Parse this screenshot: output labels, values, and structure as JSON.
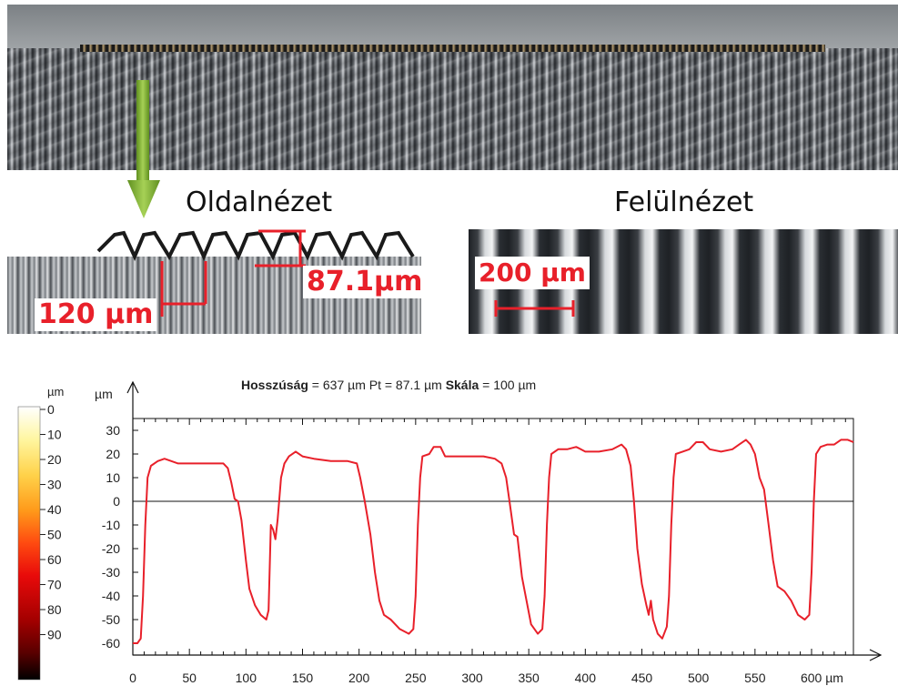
{
  "labels": {
    "side_view": "Oldalnézet",
    "top_view": "Felülnézet",
    "pitch": "120 µm",
    "depth": "87.1µm",
    "scale": "200 µm"
  },
  "header": {
    "length_label": "Hosszúság",
    "length_value": " = 637 µm  Pt = 87.1 µm ",
    "scale_label": "Skála",
    "scale_value": " = 100 µm"
  },
  "colorbar": {
    "unit": "µm",
    "ticks": [
      "0",
      "10",
      "20",
      "30",
      "40",
      "50",
      "60",
      "70",
      "80",
      "90"
    ]
  },
  "colors": {
    "accent_red": "#e8202a",
    "arrow_green": "#7cae2f"
  },
  "chart_data": {
    "type": "line",
    "title": "",
    "xlabel": "µm",
    "ylabel": "µm",
    "xlim": [
      0,
      637
    ],
    "ylim": [
      -65,
      35
    ],
    "x_ticks": [
      0,
      50,
      100,
      150,
      200,
      250,
      300,
      350,
      400,
      450,
      500,
      550,
      600
    ],
    "x_last_tick_label": "600 µm",
    "y_ticks": [
      30,
      20,
      10,
      0,
      -10,
      -20,
      -30,
      -40,
      -50,
      -60
    ],
    "series": [
      {
        "color": "#e8202a",
        "points": [
          [
            0,
            -60
          ],
          [
            4,
            -60
          ],
          [
            7,
            -58
          ],
          [
            9,
            -40
          ],
          [
            11,
            -10
          ],
          [
            13,
            10
          ],
          [
            16,
            15
          ],
          [
            22,
            17
          ],
          [
            28,
            18
          ],
          [
            34,
            17
          ],
          [
            40,
            16
          ],
          [
            60,
            16
          ],
          [
            80,
            16
          ],
          [
            84,
            14
          ],
          [
            87,
            8
          ],
          [
            90,
            1
          ],
          [
            93,
            0
          ],
          [
            96,
            -8
          ],
          [
            100,
            -25
          ],
          [
            103,
            -37
          ],
          [
            108,
            -44
          ],
          [
            113,
            -48
          ],
          [
            118,
            -50
          ],
          [
            120,
            -46
          ],
          [
            122,
            -10
          ],
          [
            124,
            -12
          ],
          [
            126,
            -16
          ],
          [
            128,
            -8
          ],
          [
            131,
            10
          ],
          [
            134,
            16
          ],
          [
            138,
            19
          ],
          [
            144,
            21
          ],
          [
            150,
            19
          ],
          [
            160,
            18
          ],
          [
            175,
            17
          ],
          [
            190,
            17
          ],
          [
            198,
            16
          ],
          [
            201,
            10
          ],
          [
            205,
            0
          ],
          [
            210,
            -14
          ],
          [
            214,
            -30
          ],
          [
            218,
            -42
          ],
          [
            222,
            -48
          ],
          [
            228,
            -50
          ],
          [
            236,
            -54
          ],
          [
            244,
            -56
          ],
          [
            248,
            -54
          ],
          [
            250,
            -40
          ],
          [
            252,
            -10
          ],
          [
            254,
            10
          ],
          [
            256,
            19
          ],
          [
            262,
            20
          ],
          [
            266,
            23
          ],
          [
            272,
            23
          ],
          [
            276,
            19
          ],
          [
            290,
            19
          ],
          [
            310,
            19
          ],
          [
            320,
            18
          ],
          [
            326,
            16
          ],
          [
            330,
            10
          ],
          [
            333,
            0
          ],
          [
            337,
            -14
          ],
          [
            340,
            -15
          ],
          [
            344,
            -32
          ],
          [
            348,
            -42
          ],
          [
            352,
            -52
          ],
          [
            358,
            -56
          ],
          [
            362,
            -54
          ],
          [
            364,
            -40
          ],
          [
            366,
            -10
          ],
          [
            368,
            10
          ],
          [
            370,
            20
          ],
          [
            376,
            22
          ],
          [
            384,
            22
          ],
          [
            392,
            23
          ],
          [
            400,
            21
          ],
          [
            412,
            21
          ],
          [
            424,
            22
          ],
          [
            432,
            24
          ],
          [
            436,
            22
          ],
          [
            440,
            15
          ],
          [
            443,
            0
          ],
          [
            446,
            -20
          ],
          [
            450,
            -35
          ],
          [
            454,
            -44
          ],
          [
            456,
            -48
          ],
          [
            458,
            -42
          ],
          [
            460,
            -50
          ],
          [
            464,
            -56
          ],
          [
            468,
            -58
          ],
          [
            472,
            -53
          ],
          [
            474,
            -40
          ],
          [
            476,
            -10
          ],
          [
            478,
            10
          ],
          [
            480,
            20
          ],
          [
            486,
            21
          ],
          [
            492,
            22
          ],
          [
            498,
            25
          ],
          [
            504,
            25
          ],
          [
            510,
            22
          ],
          [
            520,
            21
          ],
          [
            530,
            22
          ],
          [
            536,
            24
          ],
          [
            542,
            26
          ],
          [
            546,
            24
          ],
          [
            550,
            20
          ],
          [
            554,
            10
          ],
          [
            558,
            5
          ],
          [
            562,
            -10
          ],
          [
            566,
            -25
          ],
          [
            570,
            -36
          ],
          [
            576,
            -38
          ],
          [
            582,
            -42
          ],
          [
            588,
            -48
          ],
          [
            594,
            -50
          ],
          [
            598,
            -48
          ],
          [
            600,
            -30
          ],
          [
            602,
            0
          ],
          [
            604,
            20
          ],
          [
            608,
            23
          ],
          [
            614,
            24
          ],
          [
            620,
            24
          ],
          [
            626,
            26
          ],
          [
            632,
            26
          ],
          [
            637,
            25
          ]
        ]
      }
    ]
  }
}
